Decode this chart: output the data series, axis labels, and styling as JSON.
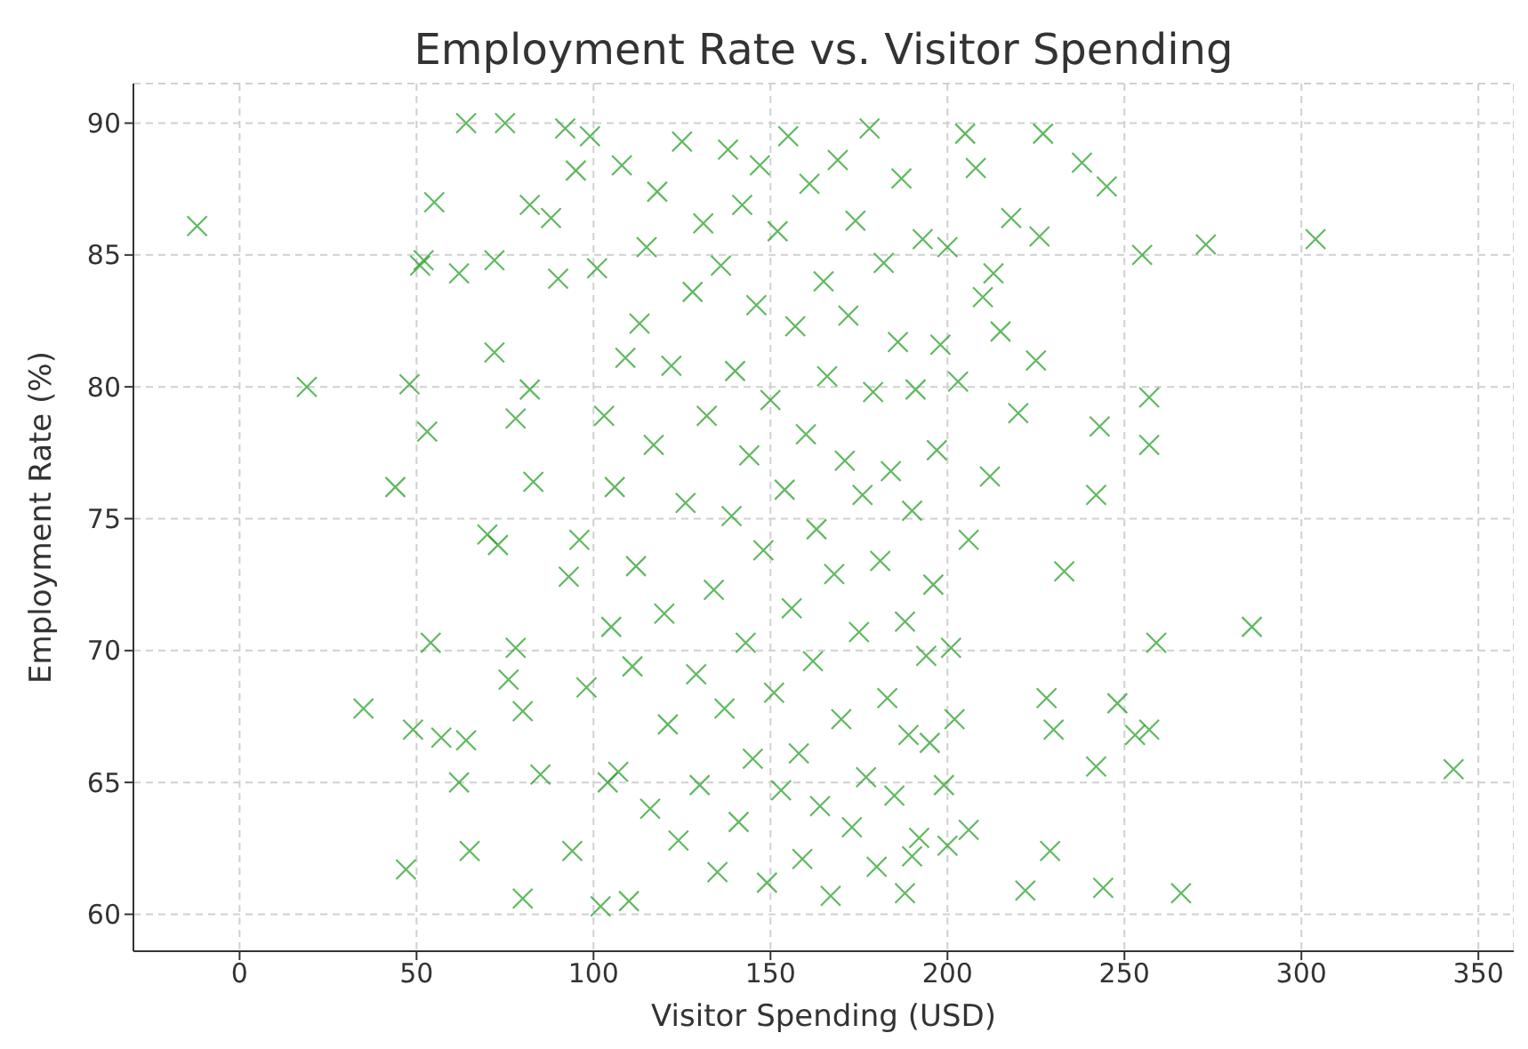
{
  "chart_data": {
    "type": "scatter",
    "title": "Employment Rate vs. Visitor Spending",
    "xlabel": "Visitor Spending (USD)",
    "ylabel": "Employment Rate (%)",
    "xlim": [
      -30,
      360
    ],
    "xticks": [
      0,
      50,
      100,
      150,
      200,
      250,
      300,
      350
    ],
    "ylim": [
      58.6,
      91.5
    ],
    "yticks": [
      60,
      65,
      70,
      75,
      80,
      85,
      90
    ],
    "grid": true,
    "marker": "cross",
    "series": [
      {
        "color": "#2ca02c",
        "x": [
          -12,
          19,
          35,
          44,
          47,
          48,
          49,
          51,
          52,
          53,
          55,
          54,
          57,
          62,
          62,
          64,
          64,
          65,
          70,
          72,
          72,
          73,
          75,
          76,
          78,
          78,
          80,
          80,
          82,
          82,
          83,
          85,
          88,
          90,
          92,
          94,
          95,
          93,
          96,
          98,
          99,
          304,
          273,
          286,
          343,
          266,
          259,
          257,
          257,
          255,
          244,
          245,
          243,
          248,
          253,
          257,
          242,
          242,
          238,
          233,
          230,
          229,
          227,
          226,
          225,
          228,
          222,
          220,
          218,
          215,
          213,
          212,
          210,
          208,
          206,
          205,
          203,
          200,
          206,
          200,
          195,
          190,
          188,
          102,
          104,
          105,
          108,
          110,
          111,
          112,
          113,
          115,
          116,
          117,
          118,
          120,
          121,
          122,
          124,
          125,
          126,
          128,
          129,
          130,
          131,
          132,
          134,
          135,
          136,
          137,
          138,
          139,
          140,
          141,
          142,
          143,
          144,
          145,
          146,
          147,
          148,
          149,
          150,
          151,
          152,
          153,
          154,
          155,
          156,
          157,
          158,
          159,
          160,
          161,
          162,
          163,
          164,
          165,
          166,
          167,
          168,
          169,
          170,
          171,
          172,
          173,
          174,
          175,
          176,
          177,
          178,
          179,
          180,
          181,
          182,
          183,
          184,
          185,
          186,
          187,
          188,
          189,
          190,
          191,
          192,
          193,
          194,
          196,
          197,
          198,
          199,
          201,
          202,
          101,
          103,
          106,
          107,
          109
        ],
        "values": [
          86.1,
          80,
          67.8,
          76.2,
          61.7,
          80.1,
          67,
          84.6,
          84.8,
          78.3,
          87,
          70.3,
          66.7,
          84.3,
          65,
          90,
          66.6,
          62.4,
          74.4,
          84.8,
          81.3,
          74,
          90,
          68.9,
          70.1,
          78.8,
          67.7,
          60.6,
          86.9,
          79.9,
          76.4,
          65.3,
          86.4,
          84.1,
          89.8,
          62.4,
          88.2,
          72.8,
          74.2,
          68.6,
          89.5,
          85.6,
          85.4,
          70.9,
          65.5,
          60.8,
          70.3,
          79.6,
          77.8,
          85,
          61,
          87.6,
          78.5,
          68,
          66.8,
          67,
          75.9,
          65.6,
          88.5,
          73,
          67,
          62.4,
          89.6,
          85.7,
          81,
          68.2,
          60.9,
          79,
          86.4,
          82.1,
          84.3,
          76.6,
          83.4,
          88.3,
          74.2,
          89.6,
          80.2,
          85.3,
          63.2,
          62.6,
          66.5,
          62.2,
          60.8,
          60.3,
          65,
          70.9,
          88.4,
          60.5,
          69.4,
          73.2,
          82.4,
          85.3,
          64,
          77.8,
          87.4,
          71.4,
          67.2,
          80.8,
          62.8,
          89.3,
          75.6,
          83.6,
          69.1,
          64.9,
          86.2,
          78.9,
          72.3,
          61.6,
          84.6,
          67.8,
          89,
          75.1,
          80.6,
          63.5,
          86.9,
          70.3,
          77.4,
          65.9,
          83.1,
          88.4,
          73.8,
          61.2,
          79.5,
          68.4,
          85.9,
          64.7,
          76.1,
          89.5,
          71.6,
          82.3,
          66.1,
          62.1,
          78.2,
          87.7,
          69.6,
          74.6,
          64.1,
          84,
          80.4,
          60.7,
          72.9,
          88.6,
          67.4,
          77.2,
          82.7,
          63.3,
          86.3,
          70.7,
          75.9,
          65.2,
          89.8,
          79.8,
          61.8,
          73.4,
          84.7,
          68.2,
          76.8,
          64.5,
          81.7,
          87.9,
          71.1,
          66.8,
          75.3,
          79.9,
          62.9,
          85.6,
          69.8,
          72.5,
          77.6,
          81.6,
          64.9,
          70.1,
          67.4,
          84.5,
          78.9,
          76.2,
          65.4,
          81.1
        ]
      }
    ]
  }
}
